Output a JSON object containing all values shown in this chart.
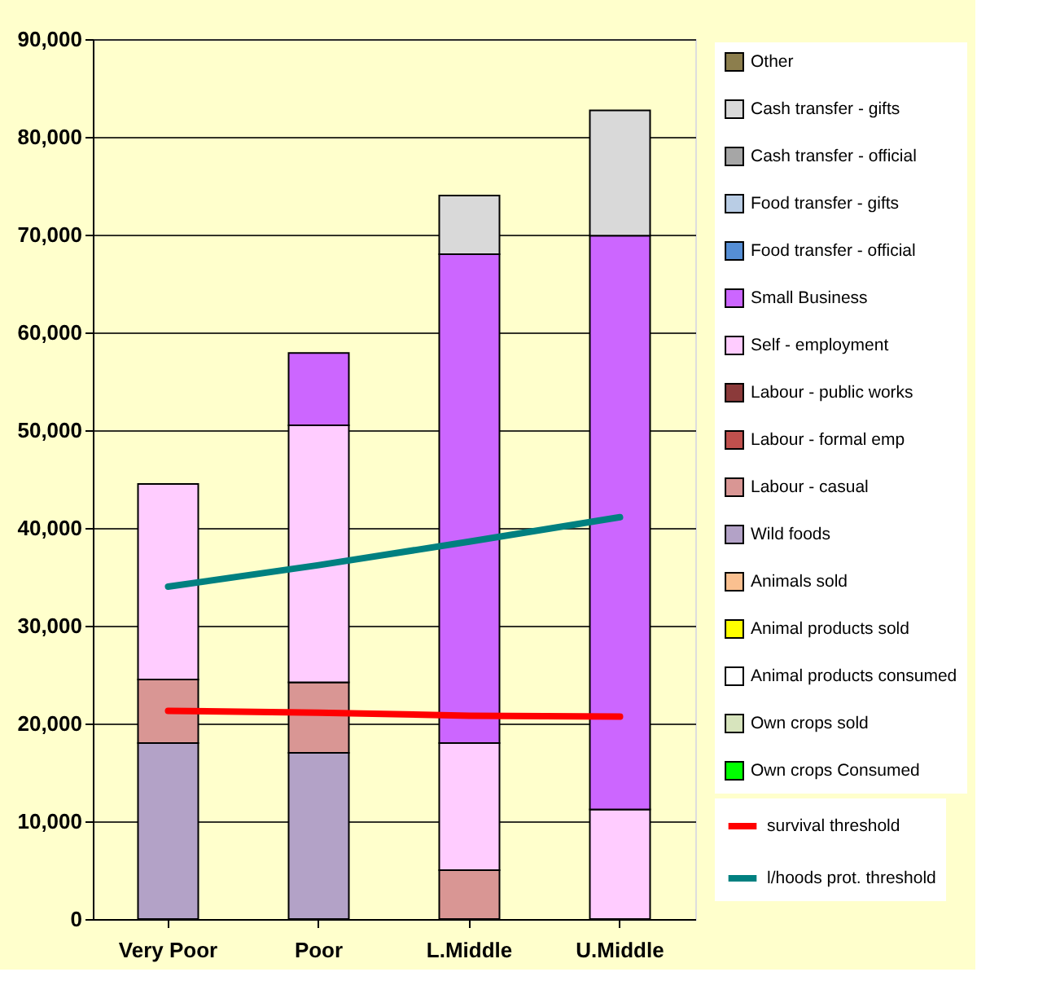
{
  "chart_data": {
    "type": "bar",
    "stacked": true,
    "categories": [
      "Very Poor",
      "Poor",
      "L.Middle",
      "U.Middle"
    ],
    "ylim": [
      0,
      90000
    ],
    "yticks": [
      0,
      {
        "value": 10000,
        "label": "10,000"
      },
      {
        "value": 20000,
        "label": "20,000"
      },
      {
        "value": 30000,
        "label": "30,000"
      },
      {
        "value": 40000,
        "label": "40,000"
      },
      {
        "value": 50000,
        "label": "50,000"
      },
      {
        "value": 60000,
        "label": "60,000"
      },
      {
        "value": 70000,
        "label": "70,000"
      },
      {
        "value": 80000,
        "label": "80,000"
      },
      {
        "value": 90000,
        "label": "90,000"
      }
    ],
    "grid": "y",
    "legend": "right",
    "series": [
      {
        "name": "Own crops Consumed",
        "color": "#00ff00",
        "values": [
          null,
          null,
          null,
          null
        ]
      },
      {
        "name": "Own crops sold",
        "color": "#d7e4bd",
        "values": [
          null,
          null,
          null,
          null
        ]
      },
      {
        "name": "Animal products consumed",
        "color": "#ffffff",
        "values": [
          null,
          null,
          null,
          null
        ]
      },
      {
        "name": "Animal products sold",
        "color": "#ffff00",
        "values": [
          null,
          null,
          null,
          null
        ]
      },
      {
        "name": "Animals sold",
        "color": "#fac090",
        "values": [
          null,
          null,
          null,
          null
        ]
      },
      {
        "name": "Wild foods",
        "color": "#b3a2c7",
        "values": [
          18000,
          17000,
          null,
          null
        ]
      },
      {
        "name": "Labour - casual",
        "color": "#d99694",
        "values": [
          6500,
          7200,
          5000,
          null
        ]
      },
      {
        "name": "Labour - formal emp",
        "color": "#c0504d",
        "values": [
          null,
          null,
          null,
          null
        ]
      },
      {
        "name": "Labour - public works",
        "color": "#8b3a3a",
        "values": [
          null,
          null,
          null,
          null
        ]
      },
      {
        "name": "Self - employment",
        "color": "#ffccff",
        "values": [
          20000,
          26300,
          13000,
          11200
        ]
      },
      {
        "name": "Small Business",
        "color": "#cc66ff",
        "values": [
          null,
          7400,
          50000,
          58700
        ]
      },
      {
        "name": "Food transfer - official",
        "color": "#558ed5",
        "values": [
          null,
          null,
          null,
          null
        ]
      },
      {
        "name": "Food transfer - gifts",
        "color": "#b9cde5",
        "values": [
          null,
          null,
          null,
          null
        ]
      },
      {
        "name": "Cash transfer - official",
        "color": "#a6a6a6",
        "values": [
          null,
          null,
          null,
          null
        ]
      },
      {
        "name": "Cash transfer - gifts",
        "color": "#d9d9d9",
        "values": [
          null,
          null,
          6000,
          12800
        ]
      },
      {
        "name": "Other",
        "color": "#8c7e4d",
        "values": [
          null,
          null,
          null,
          null
        ]
      },
      {
        "name": "survival threshold",
        "type": "line",
        "color": "#ff0000",
        "values": [
          21300,
          21100,
          20800,
          20700
        ]
      },
      {
        "name": "l/hoods prot. threshold",
        "type": "line",
        "color": "#008080",
        "values": [
          34000,
          36200,
          38600,
          41100
        ]
      }
    ]
  }
}
